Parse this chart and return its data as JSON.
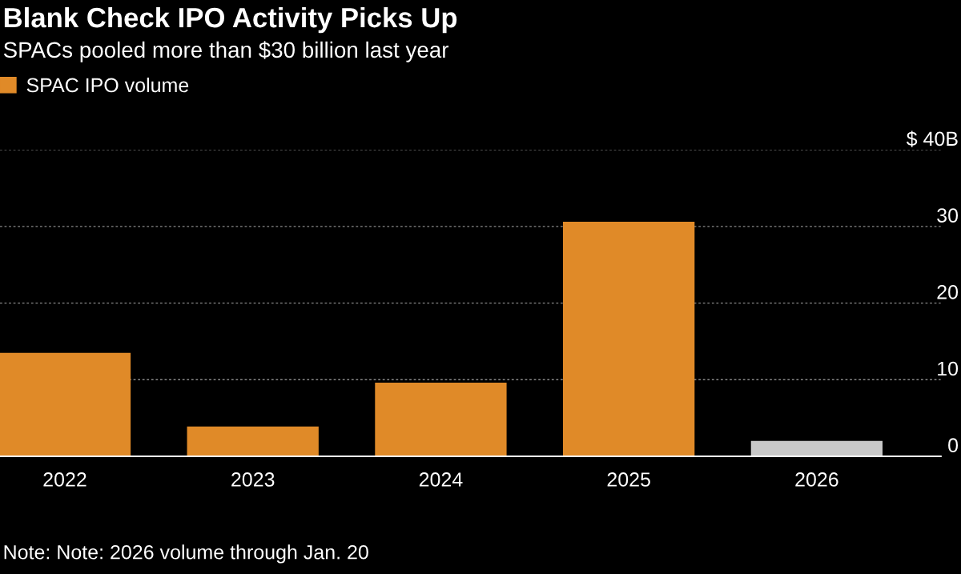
{
  "chart_data": {
    "type": "bar",
    "title": "Blank Check IPO Activity Picks Up",
    "subtitle": "SPACs pooled more than $30 billion last year",
    "categories": [
      "2022",
      "2023",
      "2024",
      "2025",
      "2026"
    ],
    "series": [
      {
        "name": "SPAC IPO volume",
        "color": "#e08a28",
        "colors": [
          "#e08a28",
          "#e08a28",
          "#e08a28",
          "#e08a28",
          "#c8c8c8"
        ],
        "values": [
          13.5,
          3.9,
          9.6,
          30.6,
          2.0
        ]
      }
    ],
    "ylim": [
      0,
      40
    ],
    "yticks": [
      0,
      10,
      20,
      30,
      {
        "value": 40,
        "label": "$ 40B"
      }
    ],
    "grid": "y",
    "legend": "top left",
    "annotations": [
      "Note: Note: 2026 volume through Jan. 20"
    ]
  }
}
